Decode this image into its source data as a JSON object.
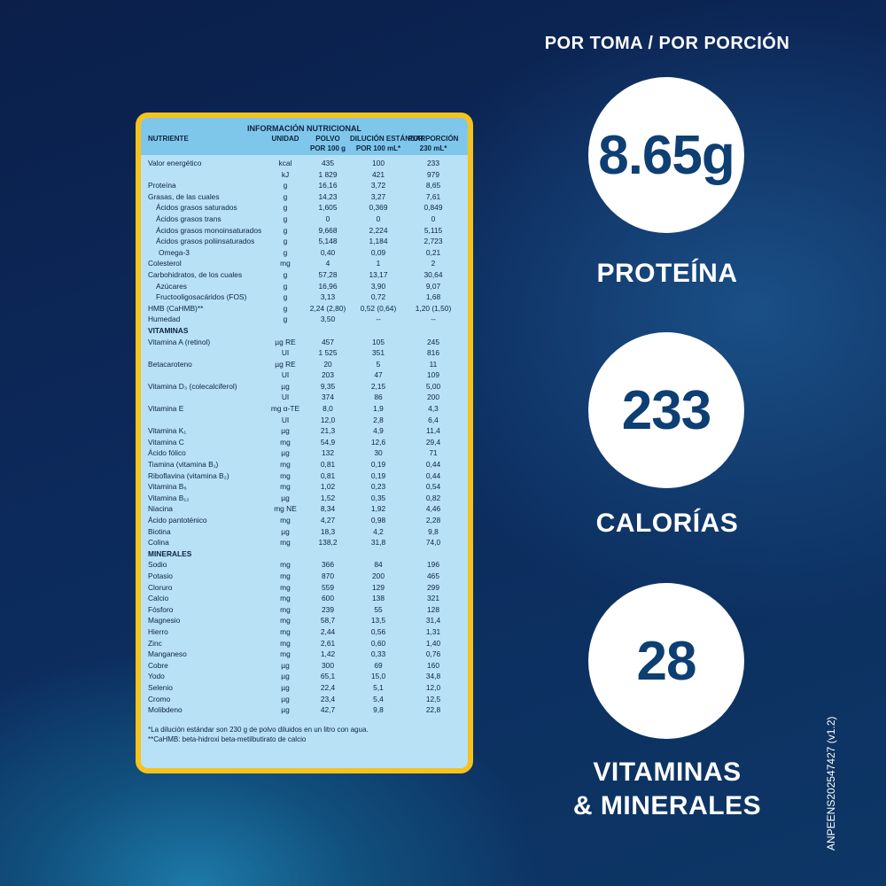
{
  "table": {
    "title": "INFORMACIÓN NUTRICIONAL",
    "headers": [
      [
        "NUTRIENTE",
        "UNIDAD",
        "POLVO",
        "DILUCIÓN ESTÁNDAR",
        "POR PORCIÓN"
      ],
      [
        "",
        "",
        "POR 100 g",
        "POR 100 mL*",
        "230 mL*"
      ]
    ],
    "rows": [
      [
        "Valor energético",
        "kcal",
        "435",
        "100",
        "233"
      ],
      [
        "",
        "kJ",
        "1 829",
        "421",
        "979"
      ],
      [
        "Proteína",
        "g",
        "16,16",
        "3,72",
        "8,65"
      ],
      [
        "Grasas, de las cuales",
        "g",
        "14,23",
        "3,27",
        "7,61"
      ],
      [
        "Ácidos grasos saturados",
        "g",
        "1,605",
        "0,369",
        "0,849"
      ],
      [
        "Ácidos grasos trans",
        "g",
        "0",
        "0",
        "0"
      ],
      [
        "Ácidos grasos monoinsaturados",
        "g",
        "9,668",
        "2,224",
        "5,115"
      ],
      [
        "Ácidos grasos poliinsaturados",
        "g",
        "5,148",
        "1,184",
        "2,723"
      ],
      [
        "Omega-3",
        "g",
        "0,40",
        "0,09",
        "0,21"
      ],
      [
        "Colesterol",
        "mg",
        "4",
        "1",
        "2"
      ],
      [
        "Carbohidratos, de los cuales",
        "g",
        "57,28",
        "13,17",
        "30,64"
      ],
      [
        "Azúcares",
        "g",
        "16,96",
        "3,90",
        "9,07"
      ],
      [
        "Fructooligosacáridos (FOS)",
        "g",
        "3,13",
        "0,72",
        "1,68"
      ],
      [
        "HMB (CaHMB)**",
        "g",
        "2,24 (2,80)",
        "0,52 (0,64)",
        "1,20 (1,50)"
      ],
      [
        "Humedad",
        "g",
        "3,50",
        "--",
        "--"
      ],
      [
        "VITAMINAS",
        "",
        "",
        "",
        ""
      ],
      [
        "Vitamina A (retinol)",
        "µg RE",
        "457",
        "105",
        "245"
      ],
      [
        "",
        "UI",
        "1 525",
        "351",
        "816"
      ],
      [
        "Betacaroteno",
        "µg RE",
        "20",
        "5",
        "11"
      ],
      [
        "",
        "UI",
        "203",
        "47",
        "109"
      ],
      [
        "Vitamina D₃ (colecalciferol)",
        "µg",
        "9,35",
        "2,15",
        "5,00"
      ],
      [
        "",
        "UI",
        "374",
        "86",
        "200"
      ],
      [
        "Vitamina E",
        "mg α-TE",
        "8,0",
        "1,9",
        "4,3"
      ],
      [
        "",
        "UI",
        "12,0",
        "2,8",
        "6,4"
      ],
      [
        "Vitamina K₁",
        "µg",
        "21,3",
        "4,9",
        "11,4"
      ],
      [
        "Vitamina C",
        "mg",
        "54,9",
        "12,6",
        "29,4"
      ],
      [
        "Ácido fólico",
        "µg",
        "132",
        "30",
        "71"
      ],
      [
        "Tiamina (vitamina B₁)",
        "mg",
        "0,81",
        "0,19",
        "0,44"
      ],
      [
        "Riboflavina (vitamina B₂)",
        "mg",
        "0,81",
        "0,19",
        "0,44"
      ],
      [
        "Vitamina B₆",
        "mg",
        "1,02",
        "0,23",
        "0,54"
      ],
      [
        "Vitamina B₁₂",
        "µg",
        "1,52",
        "0,35",
        "0,82"
      ],
      [
        "Niacina",
        "mg NE",
        "8,34",
        "1,92",
        "4,46"
      ],
      [
        "Ácido pantoténico",
        "mg",
        "4,27",
        "0,98",
        "2,28"
      ],
      [
        "Biotina",
        "µg",
        "18,3",
        "4,2",
        "9,8"
      ],
      [
        "Colina",
        "mg",
        "138,2",
        "31,8",
        "74,0"
      ],
      [
        "MINERALES",
        "",
        "",
        "",
        ""
      ],
      [
        "Sodio",
        "mg",
        "366",
        "84",
        "196"
      ],
      [
        "Potasio",
        "mg",
        "870",
        "200",
        "465"
      ],
      [
        "Cloruro",
        "mg",
        "559",
        "129",
        "299"
      ],
      [
        "Calcio",
        "mg",
        "600",
        "138",
        "321"
      ],
      [
        "Fósforo",
        "mg",
        "239",
        "55",
        "128"
      ],
      [
        "Magnesio",
        "mg",
        "58,7",
        "13,5",
        "31,4"
      ],
      [
        "Hierro",
        "mg",
        "2,44",
        "0,56",
        "1,31"
      ],
      [
        "Zinc",
        "mg",
        "2,61",
        "0,60",
        "1,40"
      ],
      [
        "Manganeso",
        "mg",
        "1,42",
        "0,33",
        "0,76"
      ],
      [
        "Cobre",
        "µg",
        "300",
        "69",
        "160"
      ],
      [
        "Yodo",
        "µg",
        "65,1",
        "15,0",
        "34,8"
      ],
      [
        "Selenio",
        "µg",
        "22,4",
        "5,1",
        "12,0"
      ],
      [
        "Cromo",
        "µg",
        "23,4",
        "5,4",
        "12,5"
      ],
      [
        "Molibdeno",
        "µg",
        "42,7",
        "9,8",
        "22,8"
      ]
    ],
    "notes": [
      "*La dilución estándar son 230 g de polvo diluidos en un litro con agua.",
      "**CaHMB: beta-hidroxi beta-metilbutirato de calcio"
    ]
  },
  "highlights": {
    "heading": "POR TOMA / POR PORCIÓN",
    "items": [
      {
        "value": "8.65g",
        "label": "PROTEÍNA"
      },
      {
        "value": "233",
        "label": "CALORÍAS"
      },
      {
        "value": "28",
        "label": "VITAMINAS & MINERALES"
      }
    ]
  },
  "code": "ANPEENS202547427 (v1.2)",
  "colors": {
    "border": "#f6c21c",
    "panel": "#b8e1f6",
    "text": "#0d3f73"
  }
}
